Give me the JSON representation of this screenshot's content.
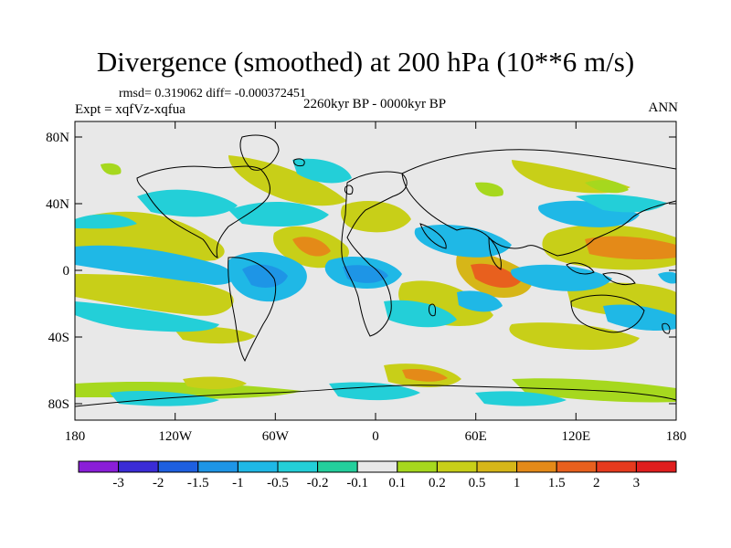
{
  "title": "Divergence (smoothed) at 200 hPa (10**6 m/s)",
  "stats": "rmsd= 0.319062 diff= -0.000372451",
  "experiment": "Expt = xqfVz-xqfua",
  "period": "2260kyr BP - 0000kyr BP",
  "season": "ANN",
  "lat_ticks": [
    "80N",
    "40N",
    "0",
    "40S",
    "80S"
  ],
  "lon_ticks": [
    "180",
    "120W",
    "60W",
    "0",
    "60E",
    "120E",
    "180"
  ],
  "colorbar": {
    "labels": [
      "-3",
      "-2",
      "-1.5",
      "-1",
      "-0.5",
      "-0.2",
      "-0.1",
      "0.1",
      "0.2",
      "0.5",
      "1",
      "1.5",
      "2",
      "3"
    ],
    "colors": [
      "#8a1ed8",
      "#3a2cd6",
      "#1e5fe0",
      "#1e95e6",
      "#1fb8e6",
      "#23cfd8",
      "#23cf9c",
      "#e8e8e8",
      "#a6d81e",
      "#c8cf18",
      "#d6b618",
      "#e48a18",
      "#e8601e",
      "#e63a1e",
      "#e01e1e"
    ]
  },
  "map": {
    "land_ocean_color": "#e8e8e8",
    "coast_color": "#000000"
  }
}
